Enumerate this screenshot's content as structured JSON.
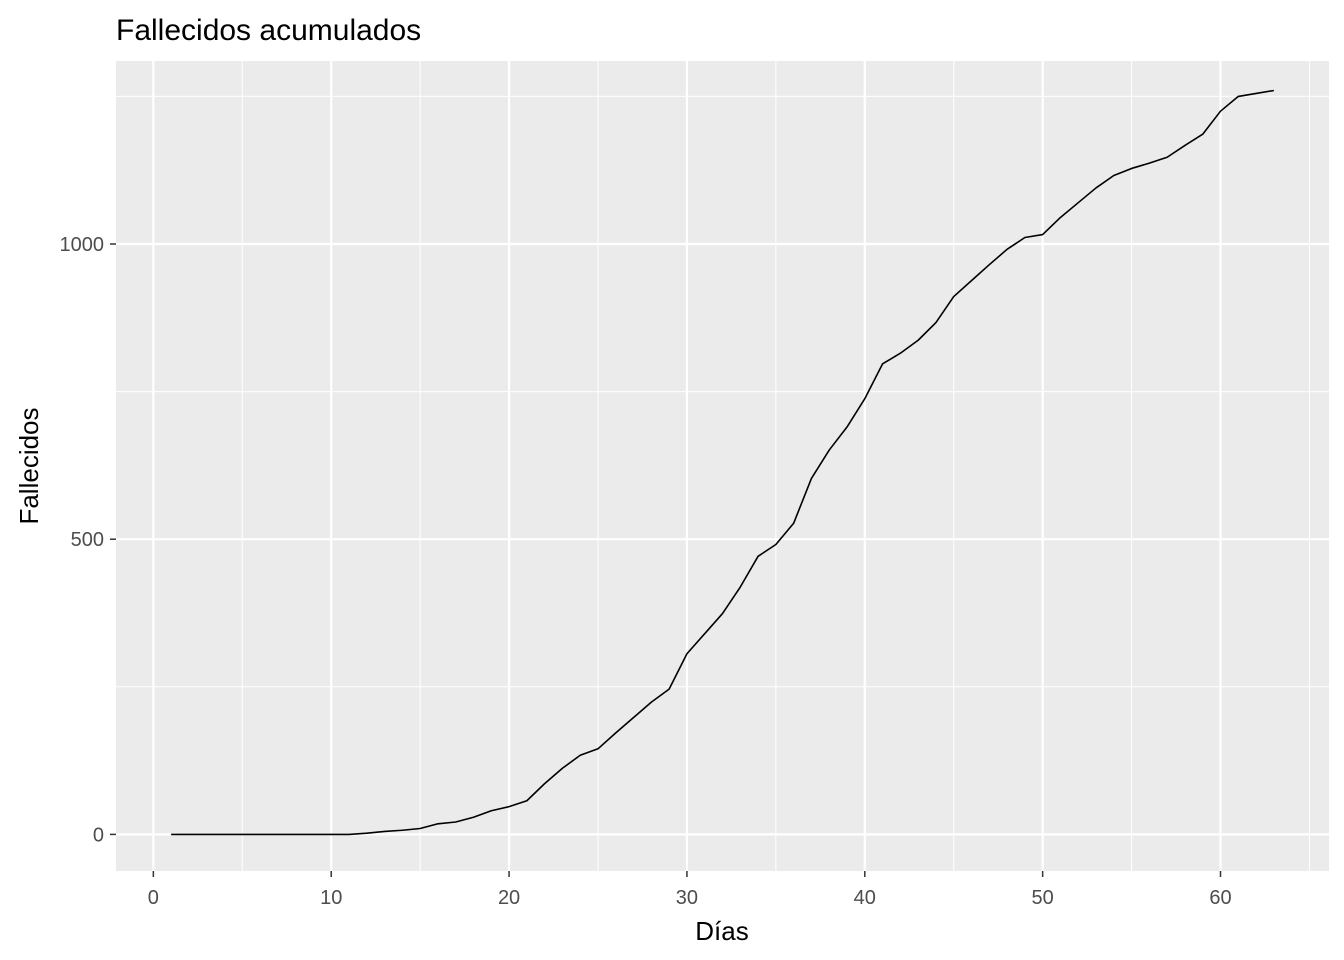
{
  "chart_data": {
    "type": "line",
    "title": "Fallecidos acumulados",
    "xlabel": "Días",
    "ylabel": "Fallecidos",
    "xlim": [
      -2.1,
      66.1
    ],
    "ylim": [
      -62,
      1310
    ],
    "x_ticks": [
      0,
      10,
      20,
      30,
      40,
      50,
      60
    ],
    "x_tick_labels": [
      "0",
      "10",
      "20",
      "30",
      "40",
      "50",
      "60"
    ],
    "x_minor_ticks": [
      5,
      15,
      25,
      35,
      45,
      55,
      65
    ],
    "y_ticks": [
      0,
      500,
      1000
    ],
    "y_tick_labels": [
      "0",
      "500",
      "1000"
    ],
    "y_minor_ticks": [
      250,
      750,
      1250
    ],
    "grid": true,
    "legend": "none",
    "colors": {
      "panel_background": "#EBEBEB",
      "grid": "#FFFFFF",
      "line": "#000000",
      "tick_label": "#4D4D4D",
      "axis_tick": "#333333"
    },
    "series": [
      {
        "x": [
          1,
          2,
          3,
          4,
          5,
          6,
          7,
          8,
          9,
          10,
          11,
          12,
          13,
          14,
          15,
          16,
          17,
          18,
          19,
          20,
          21,
          22,
          23,
          24,
          25,
          26,
          27,
          28,
          29,
          30,
          31,
          32,
          33,
          34,
          35,
          36,
          37,
          38,
          39,
          40,
          41,
          42,
          43,
          44,
          45,
          46,
          47,
          48,
          49,
          50,
          51,
          52,
          53,
          54,
          55,
          56,
          57,
          58,
          59,
          60,
          61,
          62,
          63
        ],
        "y": [
          0,
          0,
          0,
          0,
          0,
          0,
          0,
          0,
          0,
          0,
          0,
          2,
          5,
          7,
          10,
          18,
          21,
          29,
          40,
          47,
          57,
          86,
          112,
          134,
          145,
          172,
          198,
          224,
          246,
          306,
          340,
          374,
          419,
          471,
          491,
          527,
          603,
          651,
          690,
          738,
          797,
          815,
          837,
          867,
          911,
          938,
          965,
          991,
          1011,
          1016,
          1045,
          1070,
          1095,
          1116,
          1128,
          1137,
          1147,
          1167,
          1186,
          1225,
          1250,
          1255,
          1260
        ]
      }
    ]
  }
}
